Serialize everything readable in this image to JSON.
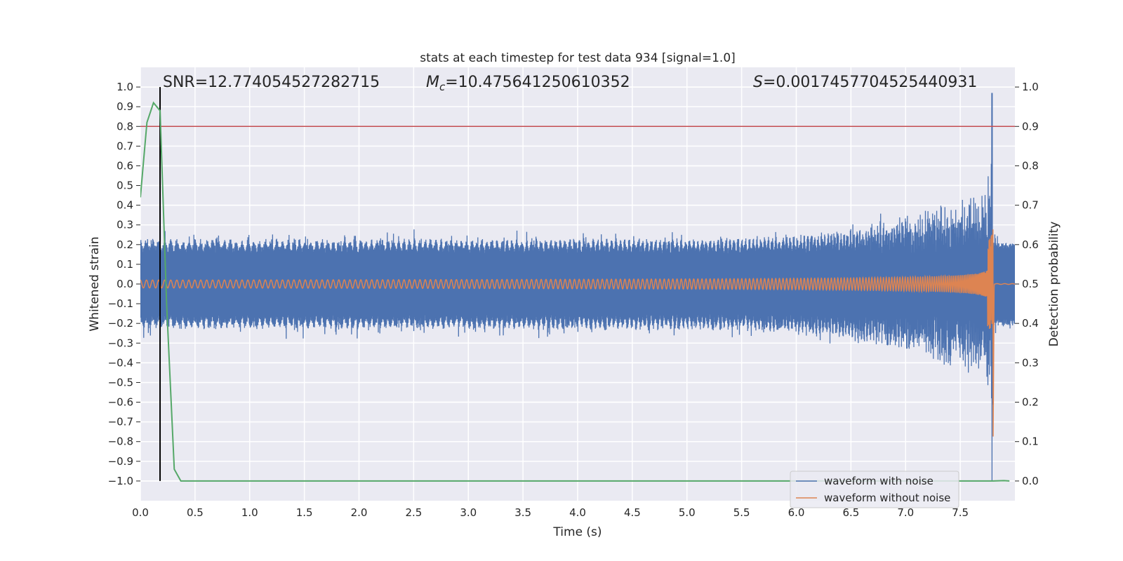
{
  "chart_data": {
    "type": "line",
    "title": "stats at each timestep for test data 934 [signal=1.0]",
    "xlabel": "Time (s)",
    "ylabel": "Whitened strain",
    "ylabel_right": "Detection probability",
    "xlim": [
      0.0,
      8.0
    ],
    "ylim": [
      -1.1,
      1.1
    ],
    "ylim_right": [
      -0.05,
      1.05
    ],
    "x_ticks": [
      "0.0",
      "0.5",
      "1.0",
      "1.5",
      "2.0",
      "2.5",
      "3.0",
      "3.5",
      "4.0",
      "4.5",
      "5.0",
      "5.5",
      "6.0",
      "6.5",
      "7.0",
      "7.5"
    ],
    "y_ticks": [
      "1.0",
      "0.9",
      "0.8",
      "0.7",
      "0.6",
      "0.5",
      "0.4",
      "0.3",
      "0.2",
      "0.1",
      "0.0",
      "−0.1",
      "−0.2",
      "−0.3",
      "−0.4",
      "−0.5",
      "−0.6",
      "−0.7",
      "−0.8",
      "−0.9",
      "−1.0"
    ],
    "y_ticks_right": [
      "1.0",
      "0.9",
      "0.8",
      "0.7",
      "0.6",
      "0.5",
      "0.4",
      "0.3",
      "0.2",
      "0.1",
      "0.0"
    ],
    "grid": true,
    "legend_position": "bottom-right",
    "annotations": {
      "snr": "SNR=12.774054527282715",
      "mc_symbol": "M",
      "mc_sub": "c",
      "mc_value": "=10.475641250610352",
      "s_symbol": "S",
      "s_value": "=0.0017457704525440931"
    },
    "series": [
      {
        "name": "waveform with noise",
        "color": "#4c72b0",
        "noise_amplitude": 0.2,
        "spike_max": 0.97,
        "spike_min": -1.0
      },
      {
        "name": "waveform without noise",
        "color": "#dd8452",
        "amplitude_start": 0.02,
        "amplitude_end": 0.85,
        "merger_time": 7.8
      },
      {
        "color": "#55a868",
        "x": [
          0.0,
          0.06,
          0.12,
          0.18,
          0.24,
          0.31,
          0.37,
          0.45,
          7.8,
          7.9,
          7.95
        ],
        "y": [
          0.72,
          0.91,
          0.96,
          0.94,
          0.45,
          0.03,
          0.0,
          0.0,
          0.0,
          0.001,
          0.0
        ]
      }
    ],
    "threshold_probability": 0.9,
    "threshold_color": "#c44e52",
    "marker_time": 0.18,
    "marker_color": "#000000"
  }
}
